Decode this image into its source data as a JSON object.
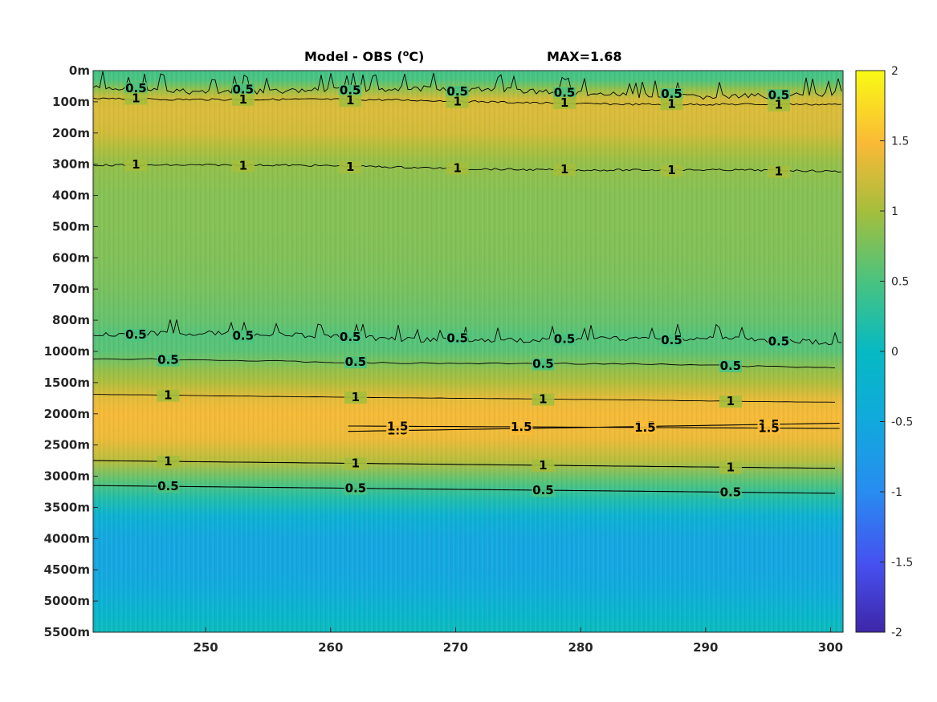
{
  "chart_data": {
    "type": "heatmap",
    "title": "Model - OBS (",
    "title_unit_sup": "o",
    "title_unit_end": "C)",
    "max_label": "MAX=1.68",
    "colormap": "parula",
    "xlim": [
      241,
      301
    ],
    "x_ticks": [
      250,
      260,
      270,
      280,
      290,
      300
    ],
    "y_tick_labels": [
      "0m",
      "100m",
      "200m",
      "300m",
      "400m",
      "500m",
      "600m",
      "700m",
      "800m",
      "1000m",
      "1500m",
      "2000m",
      "2500m",
      "3000m",
      "3500m",
      "4000m",
      "4500m",
      "5000m",
      "5500m"
    ],
    "clim": [
      -2,
      2
    ],
    "colorbar_ticks": [
      2,
      1.5,
      1,
      0.5,
      0,
      -0.5,
      -1,
      -1.5,
      -2
    ],
    "colorbar_tick_labels": [
      "2",
      "1.5",
      "1",
      "0.5",
      "0",
      "-0.5",
      "-1",
      "-1.5",
      "-2"
    ],
    "depth_profile": [
      {
        "level": 0.0,
        "value": 0.45
      },
      {
        "level": 0.3,
        "value": 0.5
      },
      {
        "level": 0.6,
        "value": 0.9
      },
      {
        "level": 0.9,
        "value": 1.25
      },
      {
        "level": 1.3,
        "value": 1.3
      },
      {
        "level": 2.0,
        "value": 1.25
      },
      {
        "level": 2.5,
        "value": 1.05
      },
      {
        "level": 3.0,
        "value": 0.9
      },
      {
        "level": 4.0,
        "value": 0.82
      },
      {
        "level": 5.0,
        "value": 0.82
      },
      {
        "level": 6.0,
        "value": 0.8
      },
      {
        "level": 7.0,
        "value": 0.75
      },
      {
        "level": 8.0,
        "value": 0.65
      },
      {
        "level": 8.5,
        "value": 0.55
      },
      {
        "level": 9.0,
        "value": 0.58
      },
      {
        "level": 9.6,
        "value": 0.9
      },
      {
        "level": 10.0,
        "value": 1.05
      },
      {
        "level": 10.5,
        "value": 1.35
      },
      {
        "level": 11.0,
        "value": 1.45
      },
      {
        "level": 11.8,
        "value": 1.4
      },
      {
        "level": 12.5,
        "value": 1.1
      },
      {
        "level": 13.2,
        "value": 0.55
      },
      {
        "level": 13.7,
        "value": 0.2
      },
      {
        "level": 14.3,
        "value": -0.3
      },
      {
        "level": 15.0,
        "value": -0.55
      },
      {
        "level": 16.0,
        "value": -0.55
      },
      {
        "level": 16.8,
        "value": -0.4
      },
      {
        "level": 17.5,
        "value": -0.1
      },
      {
        "level": 18.0,
        "value": 0.05
      }
    ],
    "contours": [
      {
        "value": 0.5,
        "label": "0.5",
        "level": 0.55,
        "noise": 1.2
      },
      {
        "value": 1,
        "label": "1",
        "level": 0.87,
        "noise": 0.4
      },
      {
        "value": 1,
        "label": "1",
        "level": 3.0,
        "noise": 0.4
      },
      {
        "value": 0.5,
        "label": "0.5",
        "level": 8.45,
        "noise": 1.0
      },
      {
        "value": 0.5,
        "label": "0.5",
        "level": 9.25,
        "noise": 0.3
      },
      {
        "value": 1,
        "label": "1",
        "level": 10.38,
        "noise": 0.05
      },
      {
        "value": 1.5,
        "label": "1.5",
        "level": 11.7,
        "noise": 0.0
      },
      {
        "value": 1.5,
        "label": "1.5",
        "level": 11.35,
        "noise": 0.0
      },
      {
        "value": 1,
        "label": "1",
        "level": 12.5,
        "noise": 0.0
      },
      {
        "value": 0.5,
        "label": "0.5",
        "level": 13.3,
        "noise": 0.0
      }
    ]
  }
}
